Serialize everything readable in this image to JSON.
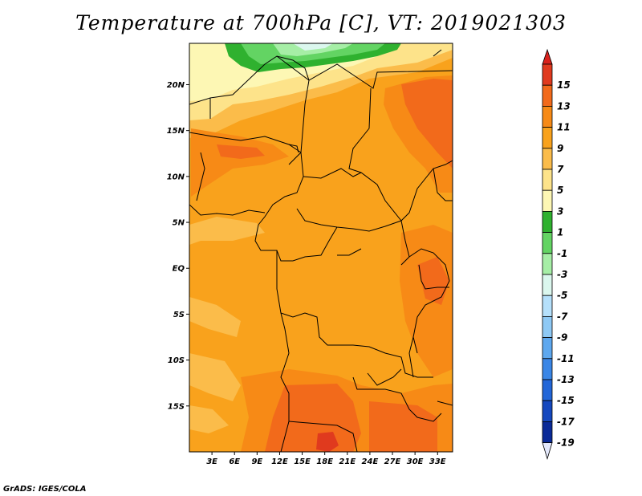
{
  "title": "Temperature at 700hPa [C], VT: 2019021303",
  "credit": "GrADS: IGES/COLA",
  "map": {
    "lat_ticks": [
      {
        "label": "20N",
        "lat": 20
      },
      {
        "label": "15N",
        "lat": 15
      },
      {
        "label": "10N",
        "lat": 10
      },
      {
        "label": "5N",
        "lat": 5
      },
      {
        "label": "EQ",
        "lat": 0
      },
      {
        "label": "5S",
        "lat": -5
      },
      {
        "label": "10S",
        "lat": -10
      },
      {
        "label": "15S",
        "lat": -15
      }
    ],
    "lon_ticks": [
      {
        "label": "3E",
        "lon": 3
      },
      {
        "label": "6E",
        "lon": 6
      },
      {
        "label": "9E",
        "lon": 9
      },
      {
        "label": "12E",
        "lon": 12
      },
      {
        "label": "15E",
        "lon": 15
      },
      {
        "label": "18E",
        "lon": 18
      },
      {
        "label": "21E",
        "lon": 21
      },
      {
        "label": "24E",
        "lon": 24
      },
      {
        "label": "27E",
        "lon": 27
      },
      {
        "label": "30E",
        "lon": 30
      },
      {
        "label": "33E",
        "lon": 33
      }
    ],
    "lon_range": [
      0,
      35
    ],
    "lat_range": [
      -20,
      24.5
    ]
  },
  "colorbar": {
    "levels": [
      {
        "label": "15",
        "color": "#e03a1e"
      },
      {
        "label": "13",
        "color": "#f26a1b"
      },
      {
        "label": "11",
        "color": "#f78a16"
      },
      {
        "label": "9",
        "color": "#f9a21c"
      },
      {
        "label": "7",
        "color": "#fbbc4a"
      },
      {
        "label": "5",
        "color": "#fde38a"
      },
      {
        "label": "3",
        "color": "#fdf7b4"
      },
      {
        "label": "1",
        "color": "#2fb12f"
      },
      {
        "label": "-1",
        "color": "#63d463"
      },
      {
        "label": "-3",
        "color": "#a6eea6"
      },
      {
        "label": "-5",
        "color": "#dbf7ee"
      },
      {
        "label": "-7",
        "color": "#b5e0fb"
      },
      {
        "label": "-9",
        "color": "#8ec9f5"
      },
      {
        "label": "-11",
        "color": "#5ea8ef"
      },
      {
        "label": "-13",
        "color": "#3a86e6"
      },
      {
        "label": "-15",
        "color": "#2266d8"
      },
      {
        "label": "-17",
        "color": "#1548bf"
      },
      {
        "label": "-19",
        "color": "#0a2a98"
      }
    ],
    "top_color": "#d9221c",
    "bottom_color": "#e3e8fb"
  }
}
